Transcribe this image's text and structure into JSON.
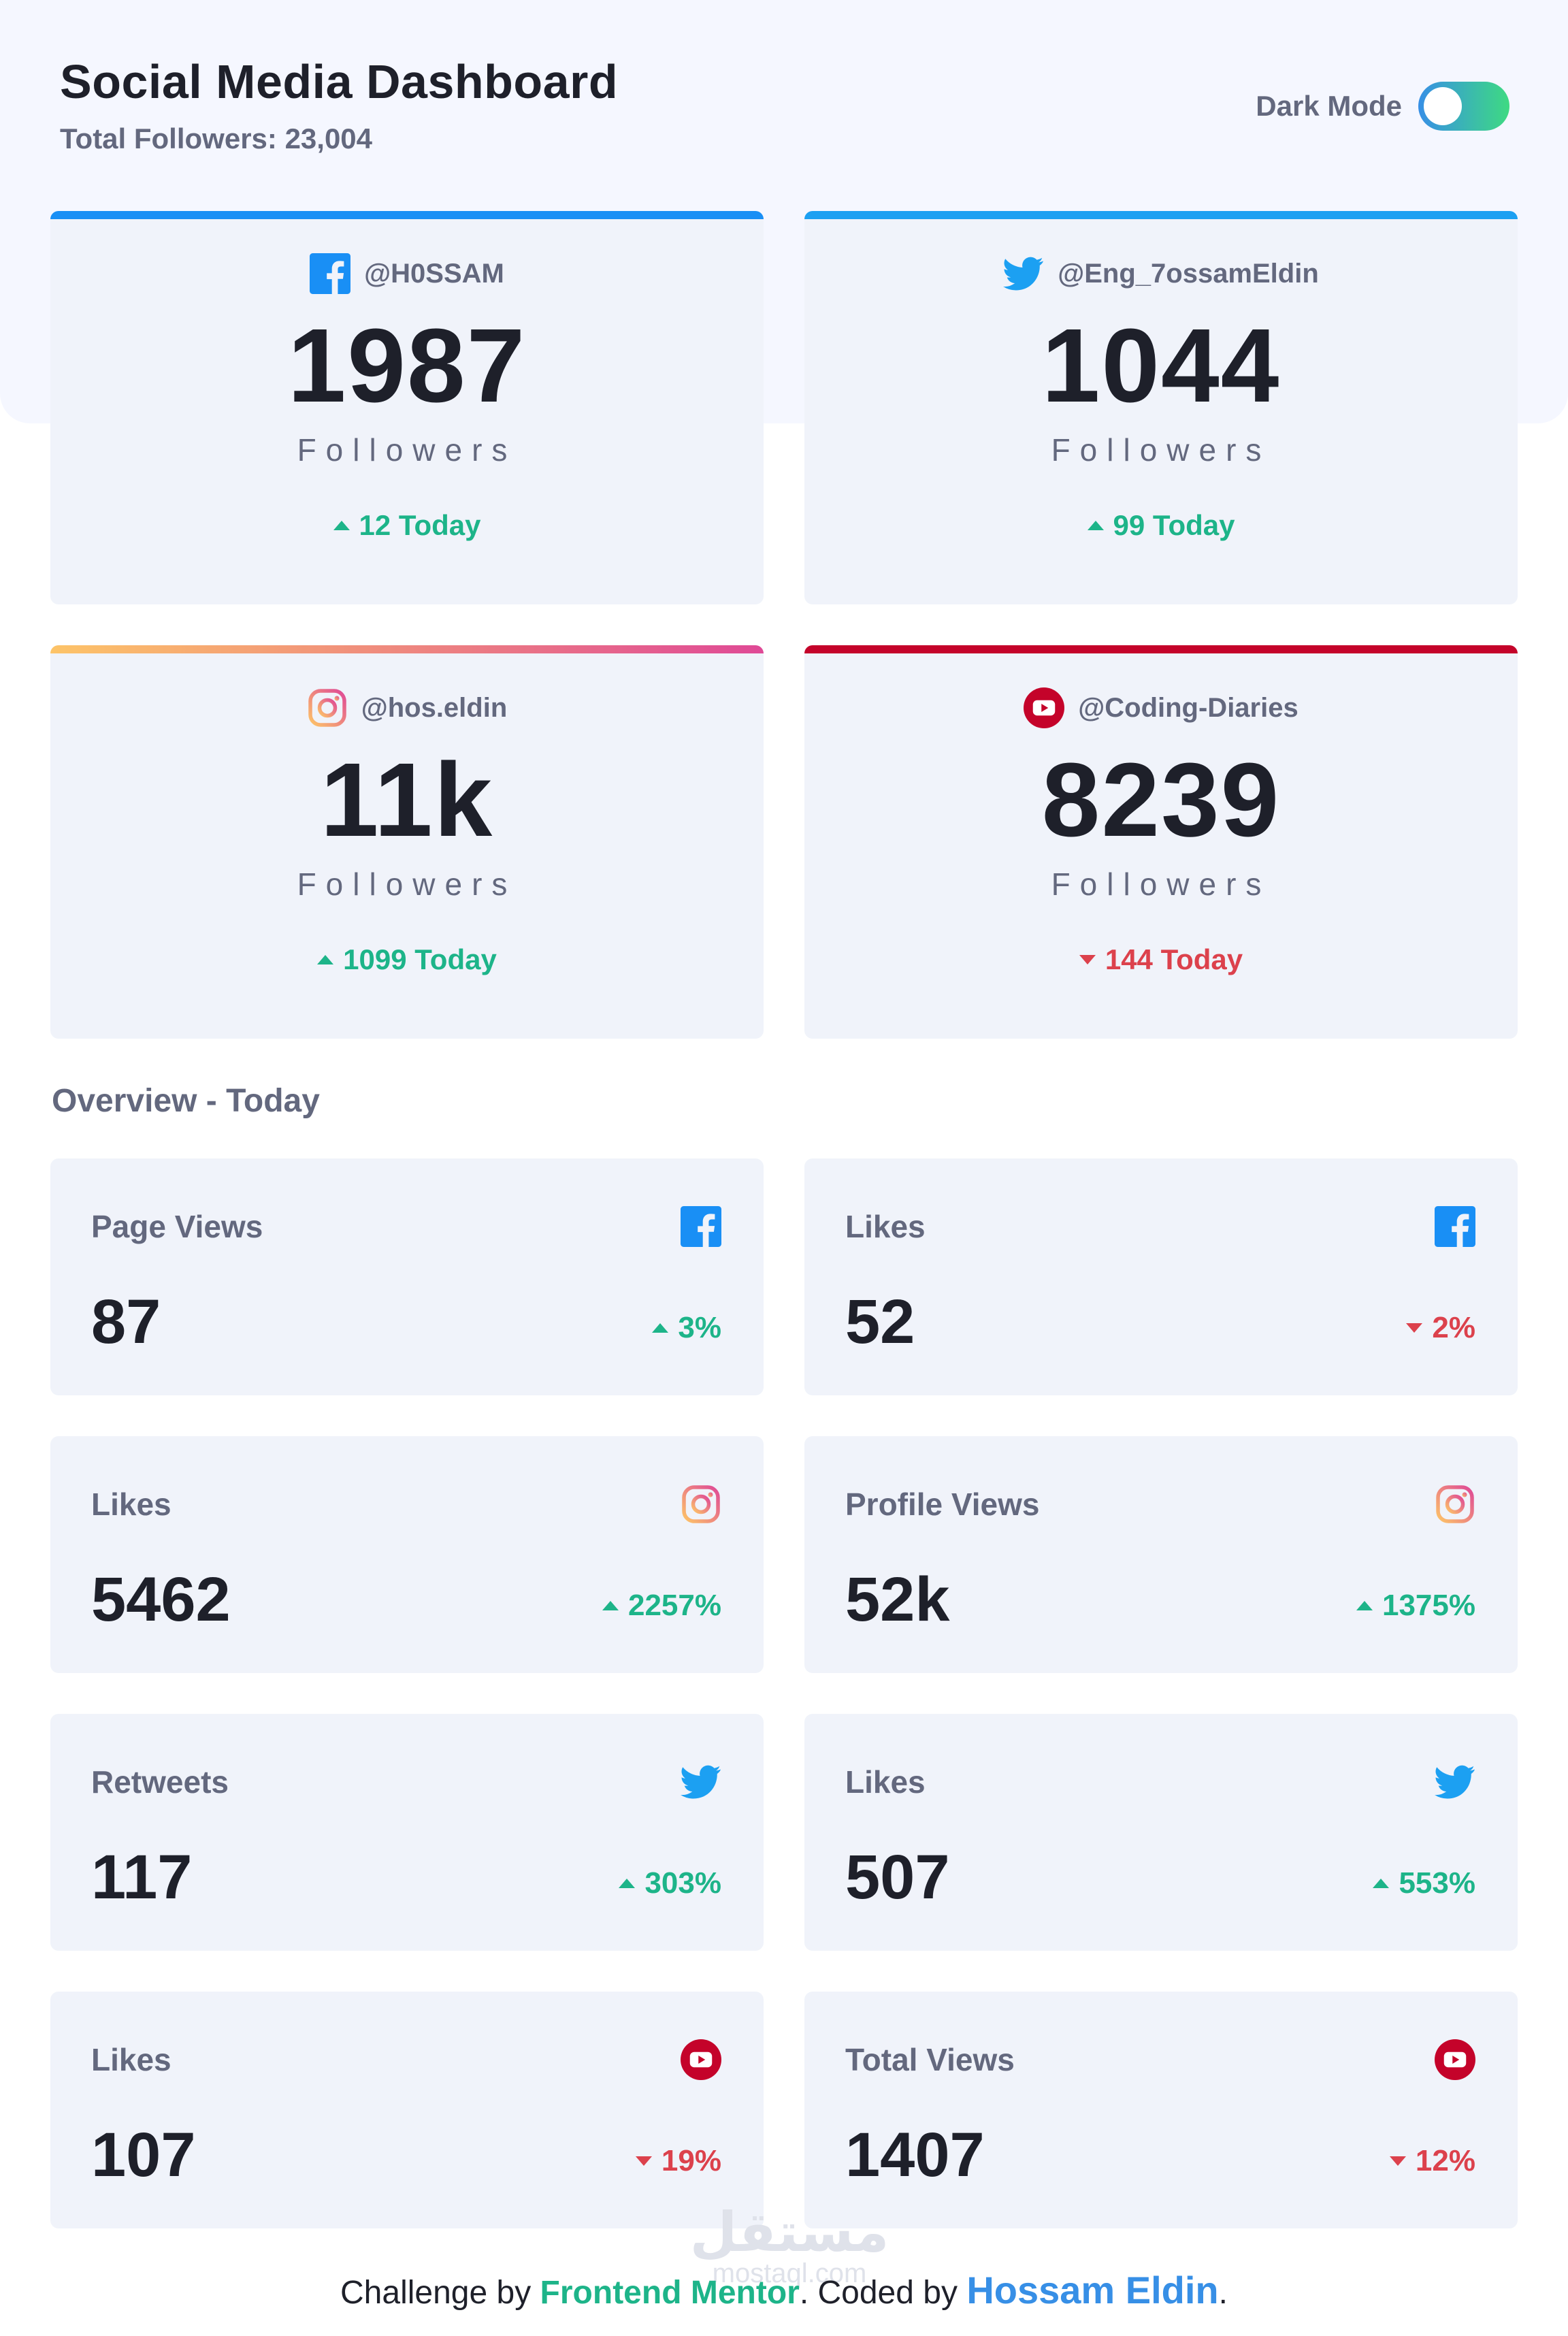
{
  "header": {
    "title": "Social Media Dashboard",
    "subtitle": "Total Followers: 23,004",
    "dark_mode_label": "Dark Mode"
  },
  "cards": [
    {
      "platform": "facebook",
      "icon": "facebook-icon",
      "handle": "@H0SSAM",
      "count": "1987",
      "label": "Followers",
      "change": "12 Today",
      "trend": "up",
      "accent": "#198ff5"
    },
    {
      "platform": "twitter",
      "icon": "twitter-icon",
      "handle": "@Eng_7ossamEldin",
      "count": "1044",
      "label": "Followers",
      "change": "99 Today",
      "trend": "up",
      "accent": "#1ca0f2"
    },
    {
      "platform": "instagram",
      "icon": "instagram-icon",
      "handle": "@hos.eldin",
      "count": "11k",
      "label": "Followers",
      "change": "1099 Today",
      "trend": "up",
      "accent_from": "#fdc468",
      "accent_to": "#df4996"
    },
    {
      "platform": "youtube",
      "icon": "youtube-icon",
      "handle": "@Coding-Diaries",
      "count": "8239",
      "label": "Followers",
      "change": "144 Today",
      "trend": "down",
      "accent": "#c4032a"
    }
  ],
  "overview": {
    "title": "Overview - Today",
    "items": [
      {
        "label": "Page Views",
        "icon": "facebook-icon",
        "value": "87",
        "change": "3%",
        "trend": "up"
      },
      {
        "label": "Likes",
        "icon": "facebook-icon",
        "value": "52",
        "change": "2%",
        "trend": "down"
      },
      {
        "label": "Likes",
        "icon": "instagram-icon",
        "value": "5462",
        "change": "2257%",
        "trend": "up"
      },
      {
        "label": "Profile Views",
        "icon": "instagram-icon",
        "value": "52k",
        "change": "1375%",
        "trend": "up"
      },
      {
        "label": "Retweets",
        "icon": "twitter-icon",
        "value": "117",
        "change": "303%",
        "trend": "up"
      },
      {
        "label": "Likes",
        "icon": "twitter-icon",
        "value": "507",
        "change": "553%",
        "trend": "up"
      },
      {
        "label": "Likes",
        "icon": "youtube-icon",
        "value": "107",
        "change": "19%",
        "trend": "down"
      },
      {
        "label": "Total Views",
        "icon": "youtube-icon",
        "value": "1407",
        "change": "12%",
        "trend": "down"
      }
    ]
  },
  "footer": {
    "prefix": "Challenge by ",
    "challenge_link": "Frontend Mentor",
    "middle": ". Coded by ",
    "author_link": "Hossam Eldin",
    "suffix": "."
  },
  "watermark": {
    "text": "مستقل",
    "sub": "mostaql.com"
  },
  "colors": {
    "up": "#1db489",
    "down": "#dc414c",
    "facebook": "#198ff5",
    "twitter": "#1ca0f2",
    "youtube": "#c4032a"
  }
}
